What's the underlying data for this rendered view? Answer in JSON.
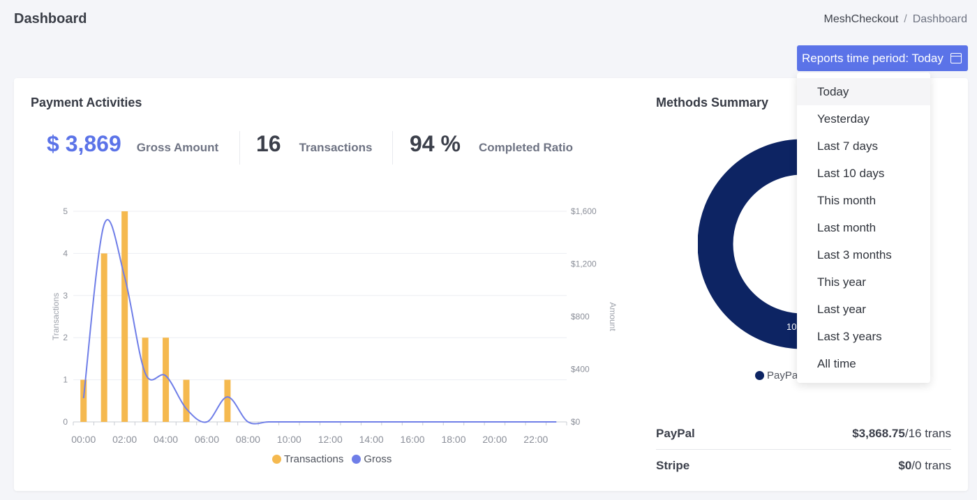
{
  "page": {
    "title": "Dashboard"
  },
  "breadcrumb": {
    "root": "MeshCheckout",
    "separator": "/",
    "current": "Dashboard"
  },
  "period_button": {
    "label": "Reports time period: Today",
    "icon": "calendar-icon"
  },
  "payment_activities": {
    "title": "Payment Activities",
    "stats": [
      {
        "value": "$ 3,869",
        "label": "Gross Amount",
        "color": "#5b73e8"
      },
      {
        "value": "16",
        "label": "Transactions",
        "color": "#3b3f4a"
      },
      {
        "value": "94 %",
        "label": "Completed Ratio",
        "color": "#3b3f4a"
      }
    ]
  },
  "chart_data": {
    "type": "bar",
    "x": [
      "00:00",
      "01:00",
      "02:00",
      "03:00",
      "04:00",
      "05:00",
      "06:00",
      "07:00",
      "08:00",
      "09:00",
      "10:00",
      "11:00",
      "12:00",
      "13:00",
      "14:00",
      "15:00",
      "16:00",
      "17:00",
      "18:00",
      "19:00",
      "20:00",
      "21:00",
      "22:00",
      "23:00"
    ],
    "x_tick_labels": [
      "00:00",
      "02:00",
      "04:00",
      "06:00",
      "08:00",
      "10:00",
      "12:00",
      "14:00",
      "16:00",
      "18:00",
      "20:00",
      "22:00"
    ],
    "series": [
      {
        "name": "Transactions",
        "type": "bar",
        "axis": "left",
        "color": "#f5b94f",
        "values": [
          1,
          4,
          5,
          2,
          2,
          1,
          0,
          1,
          0,
          0,
          0,
          0,
          0,
          0,
          0,
          0,
          0,
          0,
          0,
          0,
          0,
          0,
          0,
          0
        ]
      },
      {
        "name": "Gross",
        "type": "line",
        "axis": "right",
        "color": "#6f7ee8",
        "values": [
          180,
          1500,
          1100,
          370,
          350,
          100,
          0,
          190,
          0,
          0,
          0,
          0,
          0,
          0,
          0,
          0,
          0,
          0,
          0,
          0,
          0,
          0,
          0,
          0
        ]
      }
    ],
    "ylabel": "Transactions",
    "y2label": "Amount",
    "ylim": [
      0,
      5
    ],
    "y_ticks": [
      "0",
      "1",
      "2",
      "3",
      "4",
      "5"
    ],
    "y2lim": [
      0,
      1600
    ],
    "y2_ticks": [
      "$0",
      "$400",
      "$800",
      "$1,200",
      "$1,600"
    ],
    "grid": true,
    "legend": "bottom"
  },
  "methods_summary": {
    "title": "Methods Summary",
    "donut": {
      "color": "#0d2463",
      "label": "10",
      "legend": "PayPa"
    },
    "rows": [
      {
        "name": "PayPal",
        "amount": "$3,868.75",
        "count": "/16 trans"
      },
      {
        "name": "Stripe",
        "amount": "$0",
        "count": "/0 trans"
      }
    ]
  },
  "dropdown": {
    "options": [
      "Today",
      "Yesterday",
      "Last 7 days",
      "Last 10 days",
      "This month",
      "Last month",
      "Last 3 months",
      "This year",
      "Last year",
      "Last 3 years",
      "All time"
    ],
    "active_index": 0
  }
}
